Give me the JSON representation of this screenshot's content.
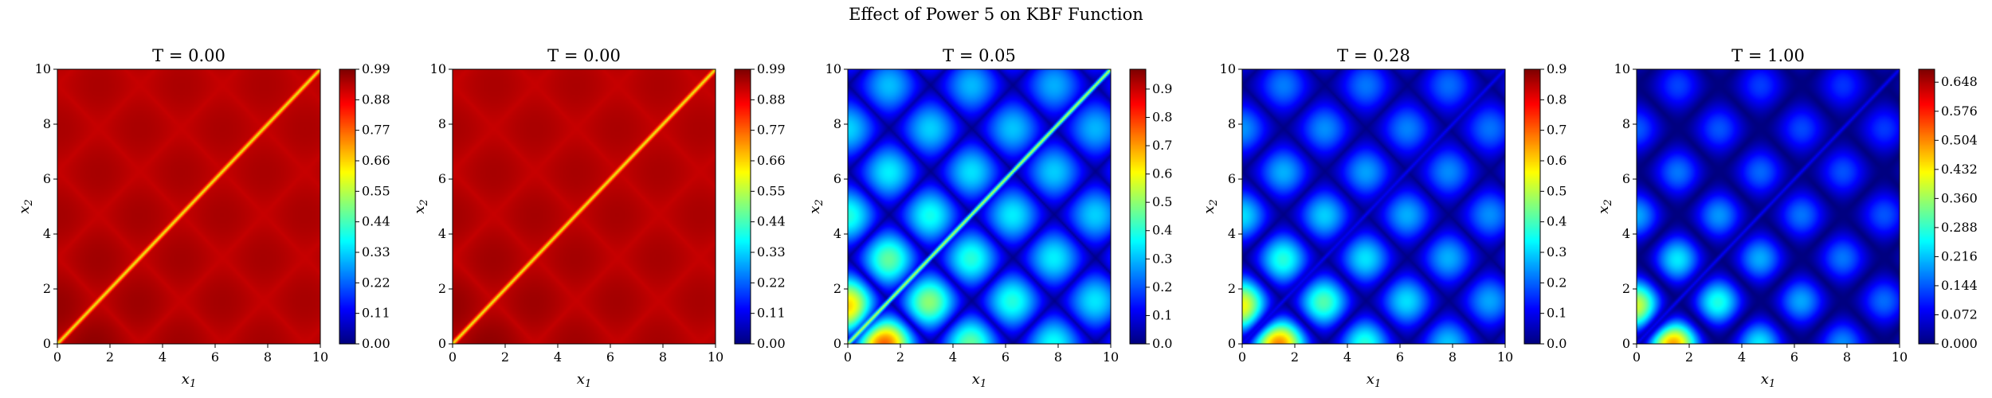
{
  "figure": {
    "title": "Effect of Power 5 on KBF Function"
  },
  "chart_data": [
    {
      "type": "heatmap",
      "title": "T = 0.00",
      "t": 0.0,
      "power": 5,
      "xlabel": "x1",
      "ylabel": "x2",
      "xlim": [
        0,
        10
      ],
      "ylim": [
        0,
        10
      ],
      "xticks": [
        "0",
        "2",
        "4",
        "6",
        "8",
        "10"
      ],
      "yticks": [
        "0",
        "2",
        "4",
        "6",
        "8",
        "10"
      ],
      "colormap": "jet",
      "colorbar": {
        "min": 0.0,
        "max": 0.99,
        "ticks": [
          "0.00",
          "0.11",
          "0.22",
          "0.33",
          "0.44",
          "0.55",
          "0.66",
          "0.77",
          "0.88",
          "0.99"
        ]
      },
      "description_values": {
        "field_level": 0.99,
        "diagonal_level": 0.6
      }
    },
    {
      "type": "heatmap",
      "title": "T = 0.00",
      "t": 0.003,
      "power": 5,
      "xlabel": "x1",
      "ylabel": "x2",
      "xlim": [
        0,
        10
      ],
      "ylim": [
        0,
        10
      ],
      "xticks": [
        "0",
        "2",
        "4",
        "6",
        "8",
        "10"
      ],
      "yticks": [
        "0",
        "2",
        "4",
        "6",
        "8",
        "10"
      ],
      "colormap": "jet",
      "colorbar": {
        "min": 0.0,
        "max": 0.99,
        "ticks": [
          "0.00",
          "0.11",
          "0.22",
          "0.33",
          "0.44",
          "0.55",
          "0.66",
          "0.77",
          "0.88",
          "0.99"
        ]
      },
      "description_values": {
        "field_level": 0.93,
        "diagonal_level": 0.6
      }
    },
    {
      "type": "heatmap",
      "title": "T = 0.05",
      "t": 0.05,
      "power": 5,
      "xlabel": "x1",
      "ylabel": "x2",
      "xlim": [
        0,
        10
      ],
      "ylim": [
        0,
        10
      ],
      "xticks": [
        "0",
        "2",
        "4",
        "6",
        "8",
        "10"
      ],
      "yticks": [
        "0",
        "2",
        "4",
        "6",
        "8",
        "10"
      ],
      "colormap": "jet",
      "colorbar": {
        "min": 0.0,
        "max": 0.97,
        "ticks": [
          "0.0",
          "0.1",
          "0.2",
          "0.3",
          "0.4",
          "0.5",
          "0.6",
          "0.7",
          "0.8",
          "0.9"
        ]
      },
      "description_values": {
        "field_level": 0.85,
        "diagonal_level": 0.35
      }
    },
    {
      "type": "heatmap",
      "title": "T = 0.28",
      "t": 0.28,
      "power": 5,
      "xlabel": "x1",
      "ylabel": "x2",
      "xlim": [
        0,
        10
      ],
      "ylim": [
        0,
        10
      ],
      "xticks": [
        "0",
        "2",
        "4",
        "6",
        "8",
        "10"
      ],
      "yticks": [
        "0",
        "2",
        "4",
        "6",
        "8",
        "10"
      ],
      "colormap": "jet",
      "colorbar": {
        "min": 0.0,
        "max": 0.9,
        "ticks": [
          "0.0",
          "0.1",
          "0.2",
          "0.3",
          "0.4",
          "0.5",
          "0.6",
          "0.7",
          "0.8",
          "0.9"
        ]
      },
      "description_values": {
        "field_level": 0.55,
        "diagonal_level": 0.05
      }
    },
    {
      "type": "heatmap",
      "title": "T = 1.00",
      "t": 1.0,
      "power": 5,
      "xlabel": "x1",
      "ylabel": "x2",
      "xlim": [
        0,
        10
      ],
      "ylim": [
        0,
        10
      ],
      "xticks": [
        "0",
        "2",
        "4",
        "6",
        "8",
        "10"
      ],
      "yticks": [
        "0",
        "2",
        "4",
        "6",
        "8",
        "10"
      ],
      "colormap": "jet",
      "colorbar": {
        "min": 0.0,
        "max": 0.68,
        "ticks": [
          "0.000",
          "0.072",
          "0.144",
          "0.216",
          "0.288",
          "0.360",
          "0.432",
          "0.504",
          "0.576",
          "0.648"
        ]
      },
      "description_values": {
        "field_level": 0.12,
        "diagonal_level": 0.02
      }
    }
  ]
}
